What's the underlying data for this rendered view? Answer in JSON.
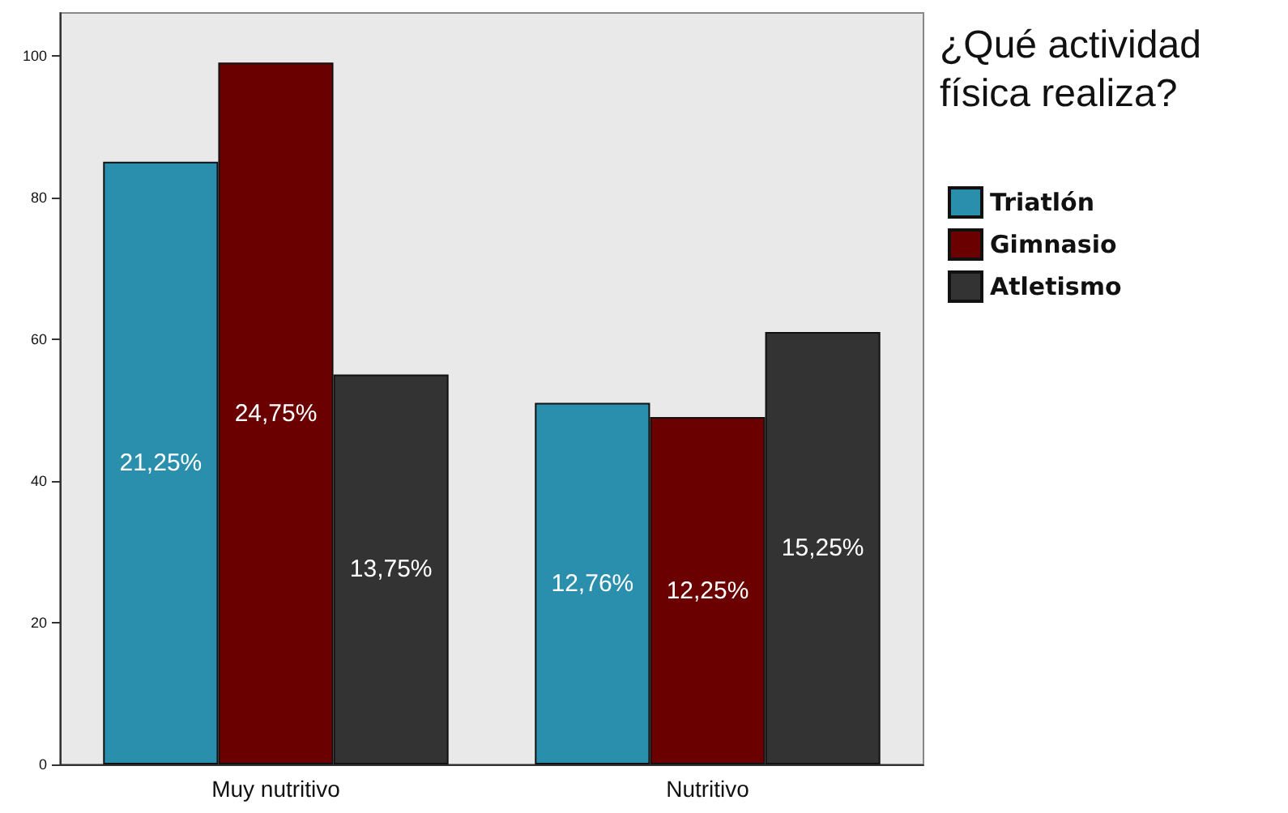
{
  "chart_data": {
    "type": "bar",
    "title": "¿Qué actividad física realiza?",
    "categories": [
      "Muy nutritivo",
      "Nutritivo"
    ],
    "series": [
      {
        "name": "Triatlón",
        "color": "#2a8fac",
        "values": [
          85,
          51
        ]
      },
      {
        "name": "Gimnasio",
        "color": "#6b0000",
        "values": [
          99,
          49
        ]
      },
      {
        "name": "Atletismo",
        "color": "#333333",
        "values": [
          55,
          61
        ]
      }
    ],
    "annotations": [
      "21,25%",
      "24,75%",
      "13,75%",
      "12,76%",
      "12,25%",
      "15,25%"
    ],
    "ylim": [
      0,
      106
    ],
    "yticks": [
      0,
      20,
      40,
      60,
      80,
      100
    ],
    "grid": false,
    "legend": "right"
  }
}
